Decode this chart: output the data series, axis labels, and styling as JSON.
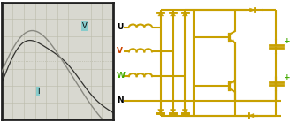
{
  "bg_left": "#d8d8d0",
  "bg_right": "#ffffff",
  "grid_color": "#bbbbaa",
  "osc_border": "#222222",
  "wave_V_color": "#888880",
  "wave_I_color": "#333330",
  "label_V": "V",
  "label_I": "I",
  "label_bg": "#88cccc",
  "circuit_color": "#c8a000",
  "label_U": "U",
  "label_V2": "V",
  "label_W": "W",
  "label_N": "N",
  "label_V2_color": "#cc4400",
  "label_W_color": "#44aa00",
  "plus_color": "#44aa00",
  "fig_width": 3.28,
  "fig_height": 1.39,
  "dpi": 100
}
